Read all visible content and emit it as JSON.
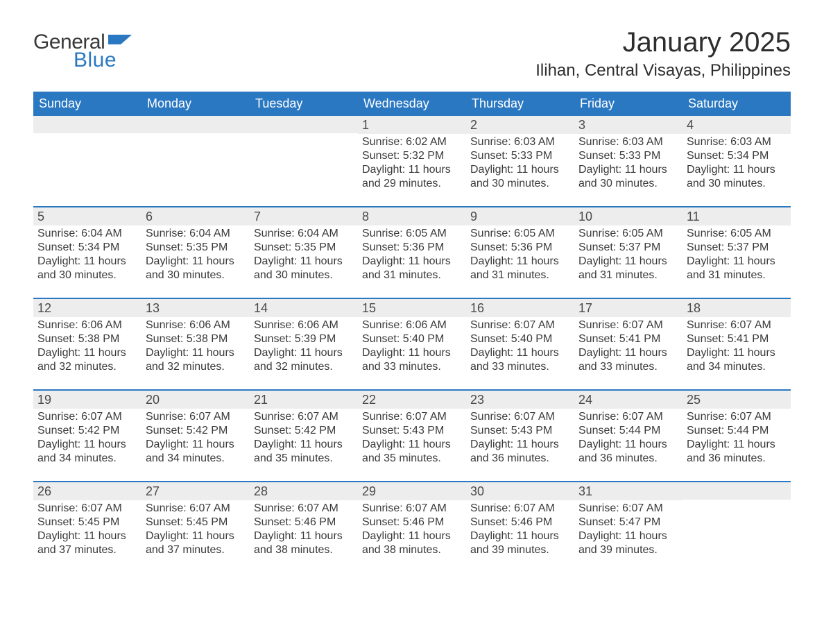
{
  "logo": {
    "text_general": "General",
    "text_blue": "Blue",
    "shape_color": "#2b78c2"
  },
  "header": {
    "title": "January 2025",
    "subtitle": "Ilihan, Central Visayas, Philippines",
    "title_fontsize": 40,
    "subtitle_fontsize": 24
  },
  "colors": {
    "header_bg": "#2b78c2",
    "header_text": "#ffffff",
    "daynum_bg": "#ededed",
    "week_border": "#2b78c2",
    "body_text": "#3a3a3a",
    "background": "#ffffff"
  },
  "daynames": [
    "Sunday",
    "Monday",
    "Tuesday",
    "Wednesday",
    "Thursday",
    "Friday",
    "Saturday"
  ],
  "weeks": [
    [
      {
        "num": "",
        "sunrise": "",
        "sunset": "",
        "daylight": ""
      },
      {
        "num": "",
        "sunrise": "",
        "sunset": "",
        "daylight": ""
      },
      {
        "num": "",
        "sunrise": "",
        "sunset": "",
        "daylight": ""
      },
      {
        "num": "1",
        "sunrise": "Sunrise: 6:02 AM",
        "sunset": "Sunset: 5:32 PM",
        "daylight": "Daylight: 11 hours and 29 minutes."
      },
      {
        "num": "2",
        "sunrise": "Sunrise: 6:03 AM",
        "sunset": "Sunset: 5:33 PM",
        "daylight": "Daylight: 11 hours and 30 minutes."
      },
      {
        "num": "3",
        "sunrise": "Sunrise: 6:03 AM",
        "sunset": "Sunset: 5:33 PM",
        "daylight": "Daylight: 11 hours and 30 minutes."
      },
      {
        "num": "4",
        "sunrise": "Sunrise: 6:03 AM",
        "sunset": "Sunset: 5:34 PM",
        "daylight": "Daylight: 11 hours and 30 minutes."
      }
    ],
    [
      {
        "num": "5",
        "sunrise": "Sunrise: 6:04 AM",
        "sunset": "Sunset: 5:34 PM",
        "daylight": "Daylight: 11 hours and 30 minutes."
      },
      {
        "num": "6",
        "sunrise": "Sunrise: 6:04 AM",
        "sunset": "Sunset: 5:35 PM",
        "daylight": "Daylight: 11 hours and 30 minutes."
      },
      {
        "num": "7",
        "sunrise": "Sunrise: 6:04 AM",
        "sunset": "Sunset: 5:35 PM",
        "daylight": "Daylight: 11 hours and 30 minutes."
      },
      {
        "num": "8",
        "sunrise": "Sunrise: 6:05 AM",
        "sunset": "Sunset: 5:36 PM",
        "daylight": "Daylight: 11 hours and 31 minutes."
      },
      {
        "num": "9",
        "sunrise": "Sunrise: 6:05 AM",
        "sunset": "Sunset: 5:36 PM",
        "daylight": "Daylight: 11 hours and 31 minutes."
      },
      {
        "num": "10",
        "sunrise": "Sunrise: 6:05 AM",
        "sunset": "Sunset: 5:37 PM",
        "daylight": "Daylight: 11 hours and 31 minutes."
      },
      {
        "num": "11",
        "sunrise": "Sunrise: 6:05 AM",
        "sunset": "Sunset: 5:37 PM",
        "daylight": "Daylight: 11 hours and 31 minutes."
      }
    ],
    [
      {
        "num": "12",
        "sunrise": "Sunrise: 6:06 AM",
        "sunset": "Sunset: 5:38 PM",
        "daylight": "Daylight: 11 hours and 32 minutes."
      },
      {
        "num": "13",
        "sunrise": "Sunrise: 6:06 AM",
        "sunset": "Sunset: 5:38 PM",
        "daylight": "Daylight: 11 hours and 32 minutes."
      },
      {
        "num": "14",
        "sunrise": "Sunrise: 6:06 AM",
        "sunset": "Sunset: 5:39 PM",
        "daylight": "Daylight: 11 hours and 32 minutes."
      },
      {
        "num": "15",
        "sunrise": "Sunrise: 6:06 AM",
        "sunset": "Sunset: 5:40 PM",
        "daylight": "Daylight: 11 hours and 33 minutes."
      },
      {
        "num": "16",
        "sunrise": "Sunrise: 6:07 AM",
        "sunset": "Sunset: 5:40 PM",
        "daylight": "Daylight: 11 hours and 33 minutes."
      },
      {
        "num": "17",
        "sunrise": "Sunrise: 6:07 AM",
        "sunset": "Sunset: 5:41 PM",
        "daylight": "Daylight: 11 hours and 33 minutes."
      },
      {
        "num": "18",
        "sunrise": "Sunrise: 6:07 AM",
        "sunset": "Sunset: 5:41 PM",
        "daylight": "Daylight: 11 hours and 34 minutes."
      }
    ],
    [
      {
        "num": "19",
        "sunrise": "Sunrise: 6:07 AM",
        "sunset": "Sunset: 5:42 PM",
        "daylight": "Daylight: 11 hours and 34 minutes."
      },
      {
        "num": "20",
        "sunrise": "Sunrise: 6:07 AM",
        "sunset": "Sunset: 5:42 PM",
        "daylight": "Daylight: 11 hours and 34 minutes."
      },
      {
        "num": "21",
        "sunrise": "Sunrise: 6:07 AM",
        "sunset": "Sunset: 5:42 PM",
        "daylight": "Daylight: 11 hours and 35 minutes."
      },
      {
        "num": "22",
        "sunrise": "Sunrise: 6:07 AM",
        "sunset": "Sunset: 5:43 PM",
        "daylight": "Daylight: 11 hours and 35 minutes."
      },
      {
        "num": "23",
        "sunrise": "Sunrise: 6:07 AM",
        "sunset": "Sunset: 5:43 PM",
        "daylight": "Daylight: 11 hours and 36 minutes."
      },
      {
        "num": "24",
        "sunrise": "Sunrise: 6:07 AM",
        "sunset": "Sunset: 5:44 PM",
        "daylight": "Daylight: 11 hours and 36 minutes."
      },
      {
        "num": "25",
        "sunrise": "Sunrise: 6:07 AM",
        "sunset": "Sunset: 5:44 PM",
        "daylight": "Daylight: 11 hours and 36 minutes."
      }
    ],
    [
      {
        "num": "26",
        "sunrise": "Sunrise: 6:07 AM",
        "sunset": "Sunset: 5:45 PM",
        "daylight": "Daylight: 11 hours and 37 minutes."
      },
      {
        "num": "27",
        "sunrise": "Sunrise: 6:07 AM",
        "sunset": "Sunset: 5:45 PM",
        "daylight": "Daylight: 11 hours and 37 minutes."
      },
      {
        "num": "28",
        "sunrise": "Sunrise: 6:07 AM",
        "sunset": "Sunset: 5:46 PM",
        "daylight": "Daylight: 11 hours and 38 minutes."
      },
      {
        "num": "29",
        "sunrise": "Sunrise: 6:07 AM",
        "sunset": "Sunset: 5:46 PM",
        "daylight": "Daylight: 11 hours and 38 minutes."
      },
      {
        "num": "30",
        "sunrise": "Sunrise: 6:07 AM",
        "sunset": "Sunset: 5:46 PM",
        "daylight": "Daylight: 11 hours and 39 minutes."
      },
      {
        "num": "31",
        "sunrise": "Sunrise: 6:07 AM",
        "sunset": "Sunset: 5:47 PM",
        "daylight": "Daylight: 11 hours and 39 minutes."
      },
      {
        "num": "",
        "sunrise": "",
        "sunset": "",
        "daylight": ""
      }
    ]
  ]
}
